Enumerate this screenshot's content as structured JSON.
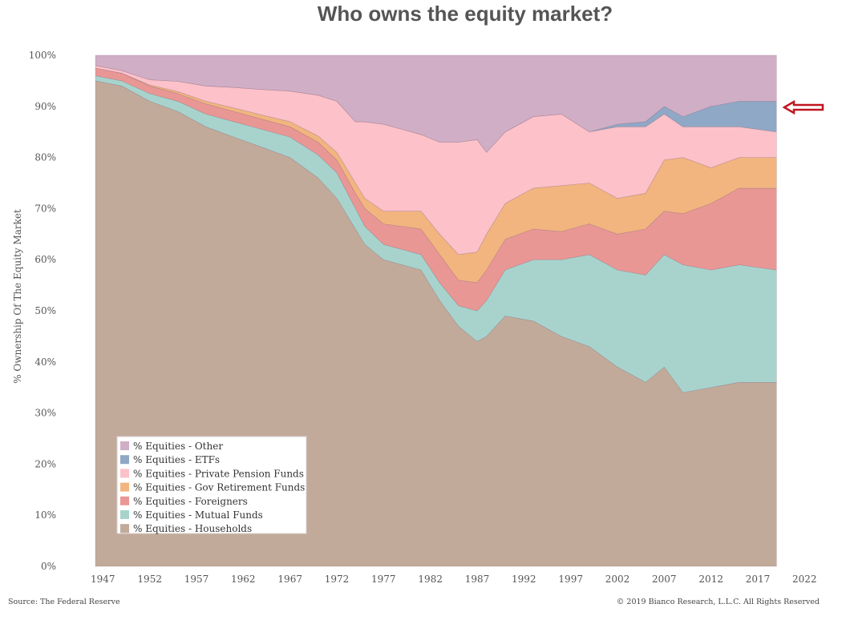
{
  "title": "Who owns the equity market?",
  "source": "Source: The Federal Reserve",
  "copyright": "© 2019 Bianco Research, L.L.C. All Rights Reserved",
  "colors": {
    "Households": "#c2aa9b",
    "Mutual Funds": "#a8d3cd",
    "Foreigners": "#e99795",
    "Gov Retirement Funds": "#f2b57f",
    "Private Pension Funds": "#fcc1c9",
    "ETFs": "#8fa8c6",
    "Other": "#d0aec6",
    "arrow": "#c0161f"
  },
  "chart_data": {
    "type": "area",
    "stacked": true,
    "ylabel": "% Ownership Of The Equity Market",
    "xlim": [
      1946.2,
      2020
    ],
    "ylim": [
      0,
      100
    ],
    "x_ticks": [
      1947,
      1952,
      1957,
      1962,
      1967,
      1972,
      1977,
      1982,
      1987,
      1992,
      1997,
      2002,
      2007,
      2012,
      2017,
      2022
    ],
    "y_ticks": [
      "0%",
      "10%",
      "20%",
      "30%",
      "40%",
      "50%",
      "60%",
      "70%",
      "80%",
      "90%",
      "100%"
    ],
    "x": [
      1946,
      1949,
      1952,
      1955,
      1958,
      1961,
      1964,
      1967,
      1970,
      1972,
      1974,
      1975,
      1977,
      1979,
      1981,
      1983,
      1985,
      1987,
      1988,
      1990,
      1993,
      1996,
      1999,
      2002,
      2005,
      2007,
      2009,
      2012,
      2015,
      2019
    ],
    "series": [
      {
        "name": "% Equities - Households",
        "values": [
          95,
          94,
          91,
          89,
          86,
          84,
          82,
          80,
          76,
          72,
          66,
          63,
          60,
          59,
          58,
          52,
          47,
          44,
          45,
          49,
          48,
          45,
          43,
          39,
          36,
          39,
          34,
          35,
          36,
          36
        ]
      },
      {
        "name": "% Equities - Mutual Funds",
        "values": [
          1,
          1,
          1.5,
          2,
          2.5,
          3,
          3.5,
          4,
          4.5,
          5,
          4,
          3.5,
          3,
          3,
          3,
          3.5,
          4,
          6,
          7,
          9,
          12,
          15,
          18,
          19,
          21,
          22,
          25,
          23,
          23,
          22
        ]
      },
      {
        "name": "% Equities - Foreigners",
        "values": [
          1.5,
          1.5,
          1.5,
          1.5,
          2,
          2,
          2,
          2,
          2.5,
          2.5,
          3,
          3.5,
          4,
          4.5,
          5,
          5.5,
          5,
          5.5,
          6,
          6,
          6,
          5.5,
          6,
          7,
          9,
          8.5,
          10,
          13,
          15,
          16
        ]
      },
      {
        "name": "% Equities - Gov Retirement Funds",
        "values": [
          0,
          0,
          0.2,
          0.4,
          0.5,
          0.7,
          0.8,
          1,
          1.2,
          1.5,
          2,
          2,
          2.5,
          3,
          3.5,
          4,
          5,
          6,
          7,
          7,
          8,
          9,
          8,
          7,
          7,
          10,
          11,
          7,
          6,
          6
        ]
      },
      {
        "name": "% Equities - Private Pension Funds",
        "values": [
          0.5,
          0.5,
          1,
          2,
          3,
          4,
          5,
          6,
          8,
          10,
          12,
          15,
          17,
          16,
          15,
          18,
          22,
          22,
          16,
          14,
          14,
          14,
          10,
          14,
          13,
          9,
          6,
          8,
          6,
          5
        ]
      },
      {
        "name": "% Equities - ETFs",
        "values": [
          0,
          0,
          0,
          0,
          0,
          0,
          0,
          0,
          0,
          0,
          0,
          0,
          0,
          0,
          0,
          0,
          0,
          0,
          0,
          0,
          0,
          0,
          0,
          0.5,
          1,
          1.5,
          2,
          4,
          5,
          6
        ]
      },
      {
        "name": "% Equities - Other",
        "values": [
          2,
          3,
          4,
          5,
          6,
          6,
          6.7,
          7,
          7.8,
          9,
          13,
          13,
          13.5,
          14.5,
          15.5,
          17,
          17,
          16.5,
          19,
          15,
          12,
          11.5,
          15,
          13.5,
          13,
          10,
          12,
          10,
          9,
          9
        ]
      }
    ],
    "legend_position": "bottom-left",
    "annotation": "arrow pointing to ETFs band"
  }
}
